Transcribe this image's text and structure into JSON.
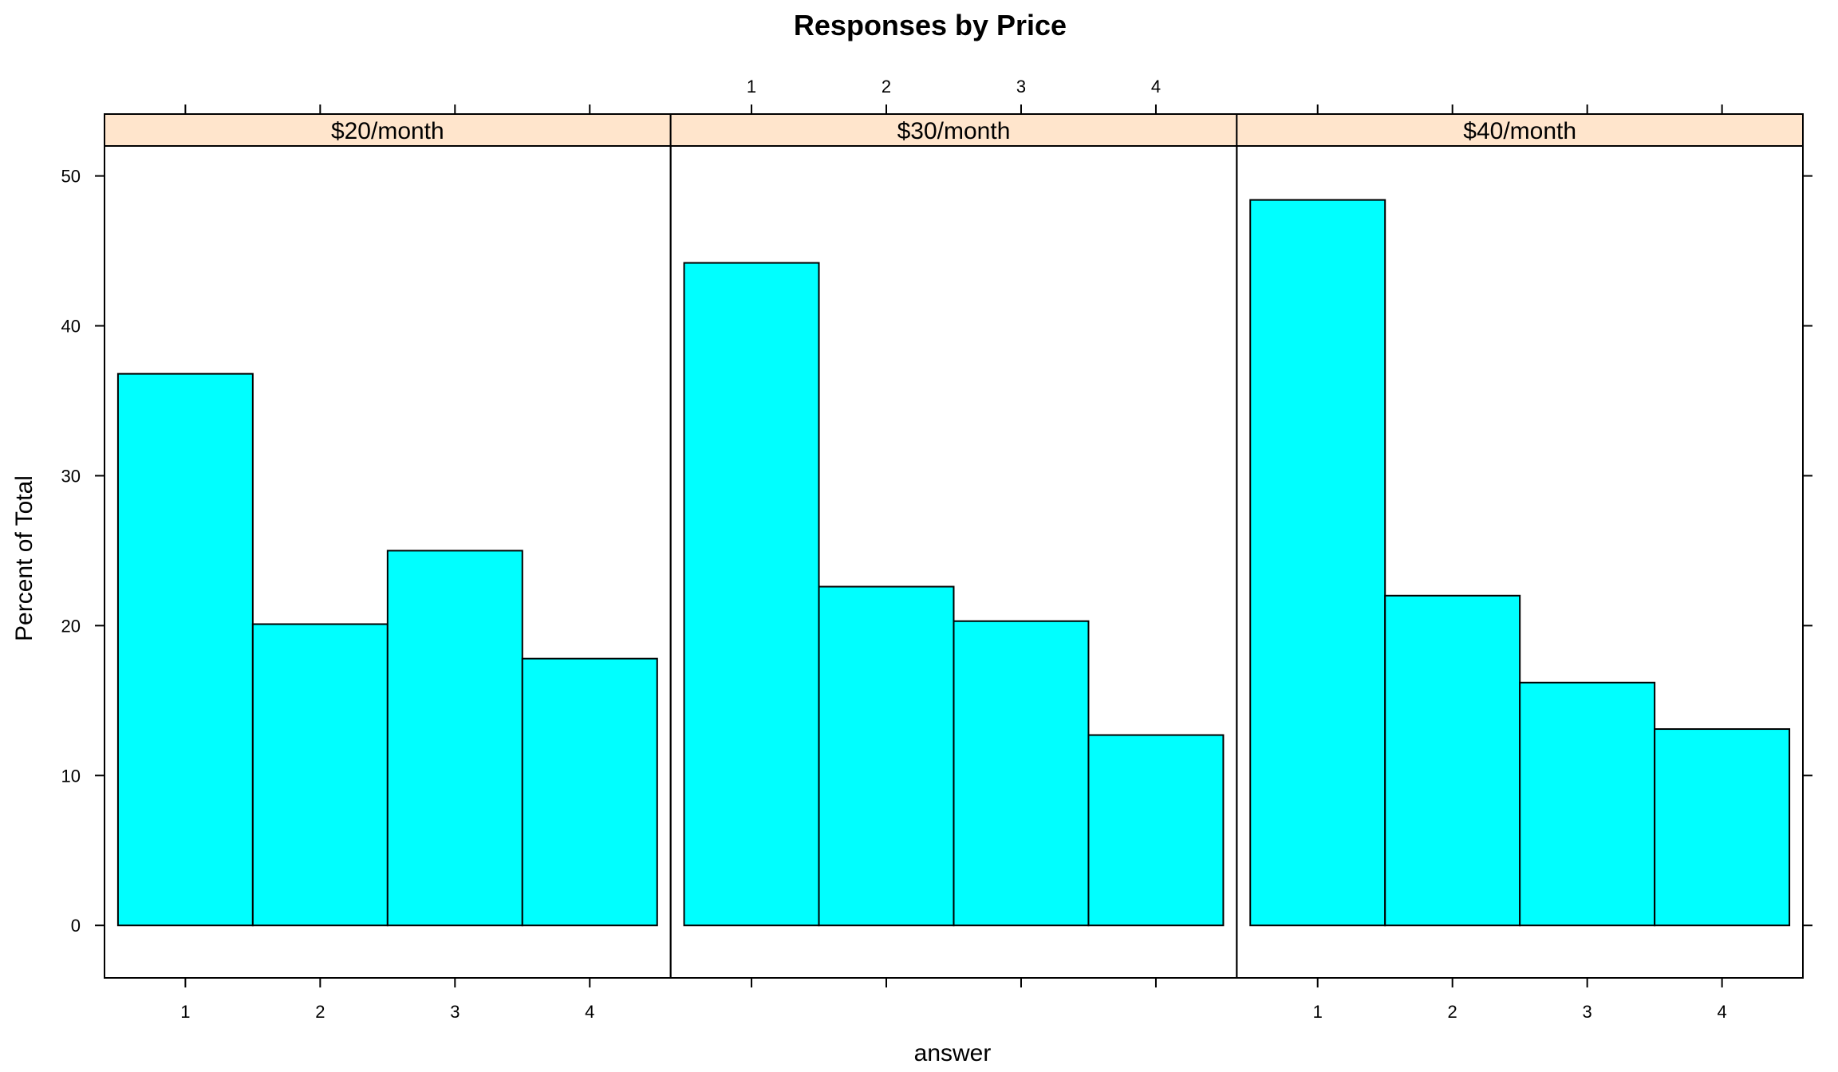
{
  "chart_data": {
    "type": "bar",
    "title": "Responses by Price",
    "xlabel": "answer",
    "ylabel": "Percent of Total",
    "categories": [
      "1",
      "2",
      "3",
      "4"
    ],
    "yticks": [
      "0",
      "10",
      "20",
      "30",
      "40",
      "50"
    ],
    "ylim": [
      -3.5,
      52
    ],
    "grid": false,
    "colors": {
      "bar_fill": "#00FFFF",
      "bar_stroke": "#000000",
      "strip_fill": "#FFE5CC"
    },
    "panels": [
      {
        "name": "$20/month",
        "values": [
          36.8,
          20.1,
          25.0,
          17.8
        ]
      },
      {
        "name": "$30/month",
        "values": [
          44.2,
          22.6,
          20.3,
          12.7
        ]
      },
      {
        "name": "$40/month",
        "values": [
          48.4,
          22.0,
          16.2,
          13.1
        ]
      }
    ]
  }
}
